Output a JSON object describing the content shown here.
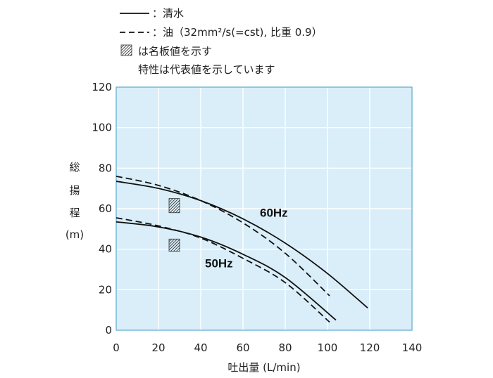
{
  "legend": {
    "clear_water": "：清水",
    "oil": "：油（32mm²/s(=cst), 比重 0.9）",
    "rated": "は名板値を示す",
    "note": "特性は代表値を示しています"
  },
  "colors": {
    "plot_bg": "#d9eef9",
    "plot_border": "#59aacf",
    "curve": "#111111"
  },
  "chart_data": {
    "type": "line",
    "xlabel": "吐出量 (L/min)",
    "ylabel_chars": [
      "総",
      "揚",
      "程",
      "(m)"
    ],
    "xlim": [
      0,
      140
    ],
    "ylim": [
      0,
      120
    ],
    "xticks": [
      "0",
      "20",
      "40",
      "60",
      "80",
      "100",
      "120",
      "140"
    ],
    "yticks": [
      "0",
      "20",
      "40",
      "60",
      "80",
      "100",
      "120"
    ],
    "grid": true,
    "legend_position": "top-left",
    "series": [
      {
        "group": "60Hz",
        "fluid": "clear_water",
        "style": "solid",
        "x": [
          0,
          20,
          40,
          60,
          80,
          100,
          119
        ],
        "y": [
          73.5,
          70,
          64,
          55,
          43,
          28,
          11
        ]
      },
      {
        "group": "60Hz",
        "fluid": "oil",
        "style": "dashed",
        "x": [
          0,
          20,
          40,
          60,
          80,
          101
        ],
        "y": [
          76,
          71.5,
          64,
          53,
          38,
          17
        ]
      },
      {
        "group": "50Hz",
        "fluid": "clear_water",
        "style": "solid",
        "x": [
          0,
          20,
          40,
          60,
          80,
          104
        ],
        "y": [
          53.5,
          51,
          46,
          37.5,
          26,
          5
        ]
      },
      {
        "group": "50Hz",
        "fluid": "oil",
        "style": "dashed",
        "x": [
          0,
          20,
          40,
          60,
          80,
          101
        ],
        "y": [
          55.5,
          51.5,
          45.5,
          35.5,
          23.5,
          4
        ]
      }
    ],
    "rated_points": [
      {
        "group": "60Hz",
        "x": [
          25,
          30
        ],
        "y": [
          58,
          65
        ]
      },
      {
        "group": "50Hz",
        "x": [
          25,
          30
        ],
        "y": [
          39,
          45
        ]
      }
    ],
    "series_labels": [
      {
        "text": "60Hz",
        "x": 68,
        "y": 56
      },
      {
        "text": "50Hz",
        "x": 42,
        "y": 31
      }
    ]
  }
}
